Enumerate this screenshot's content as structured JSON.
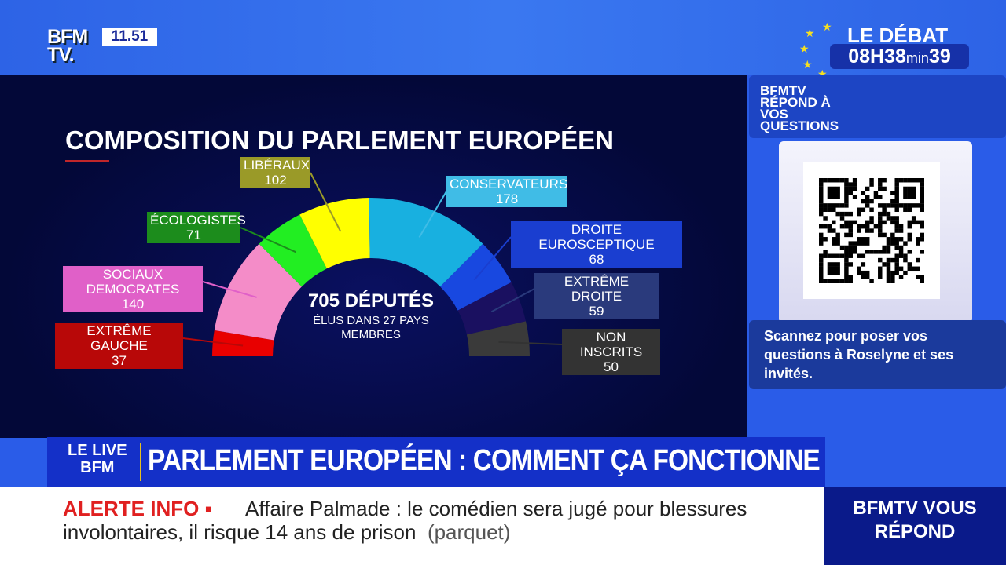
{
  "header": {
    "logo": "BFM TV.",
    "time": "11.51",
    "debate_title": "LE DÉBAT",
    "timer_hours": "08H38",
    "timer_min_label": "min",
    "timer_seconds": "39"
  },
  "side": {
    "brand": "BFMTV RÉPOND À VOS QUESTIONS",
    "scan_text": "Scannez pour poser vos questions à Roselyne et ses invités."
  },
  "banner": {
    "tag_line1": "LE LIVE",
    "tag_line2": "BFM",
    "headline": "PARLEMENT EUROPÉEN : COMMENT ÇA FONCTIONNE"
  },
  "ticker": {
    "label": "ALERTE INFO ▪",
    "line1": "Affaire Palmade : le comédien sera jugé pour blessures",
    "line2": "involontaires, il risque 14 ans de prison",
    "source": "(parquet)"
  },
  "corner": {
    "text": "BFMTV VOUS RÉPOND"
  },
  "chart_data": {
    "type": "pie",
    "subtype": "parliament-semicircle",
    "title": "COMPOSITION DU PARLEMENT EUROPÉEN",
    "center_title": "705 DÉPUTÉS",
    "center_subtitle": "ÉLUS DANS 27 PAYS MEMBRES",
    "categories": [
      "EXTRÊME GAUCHE",
      "SOCIAUX DEMOCRATES",
      "ÉCOLOGISTES",
      "LIBÉRAUX",
      "CONSERVATEURS",
      "DROITE EUROSCEPTIQUE",
      "EXTRÊME DROITE",
      "NON INSCRITS"
    ],
    "values": [
      37,
      140,
      71,
      102,
      178,
      68,
      59,
      50
    ],
    "colors": [
      "#e80000",
      "#f48cc8",
      "#22ee22",
      "#ffff00",
      "#18b0e0",
      "#1848e0",
      "#1a1060",
      "#3a3a3a"
    ],
    "label_colors": [
      "#b80808",
      "#e060c8",
      "#1c8c1c",
      "#9a9a28",
      "#40bce6",
      "#1a3ed0",
      "#2a3a7c",
      "#333333"
    ]
  }
}
